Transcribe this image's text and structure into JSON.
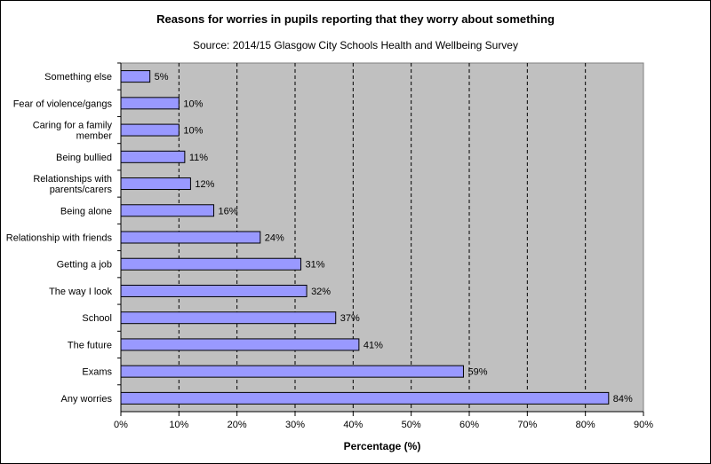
{
  "chart_data": {
    "type": "bar",
    "orientation": "horizontal",
    "title": "Reasons for worries in pupils reporting that they worry about something",
    "subtitle": "Source: 2014/15  Glasgow City Schools Health and Wellbeing Survey",
    "xlabel": "Percentage (%)",
    "ylabel": "",
    "xlim": [
      0,
      90
    ],
    "x_ticks": [
      "0%",
      "10%",
      "20%",
      "30%",
      "40%",
      "50%",
      "60%",
      "70%",
      "80%",
      "90%"
    ],
    "grid": "vertical dashed",
    "categories": [
      [
        "Something else"
      ],
      [
        "Fear of violence/gangs"
      ],
      [
        "Caring for a family",
        "member"
      ],
      [
        "Being bullied"
      ],
      [
        "Relationships with",
        "parents/carers"
      ],
      [
        "Being alone"
      ],
      [
        "Relationship with friends"
      ],
      [
        "Getting a job"
      ],
      [
        "The way I look"
      ],
      [
        "School"
      ],
      [
        "The future"
      ],
      [
        "Exams"
      ],
      [
        "Any worries"
      ]
    ],
    "values": [
      5,
      10,
      10,
      11,
      12,
      16,
      24,
      31,
      32,
      37,
      41,
      59,
      84
    ],
    "value_labels": [
      "5%",
      "10%",
      "10%",
      "11%",
      "12%",
      "16%",
      "24%",
      "31%",
      "32%",
      "37%",
      "41%",
      "59%",
      "84%"
    ],
    "colors": {
      "bar_fill": "#9999ff",
      "bar_stroke": "#000000",
      "plot_background": "#c0c0c0"
    }
  }
}
